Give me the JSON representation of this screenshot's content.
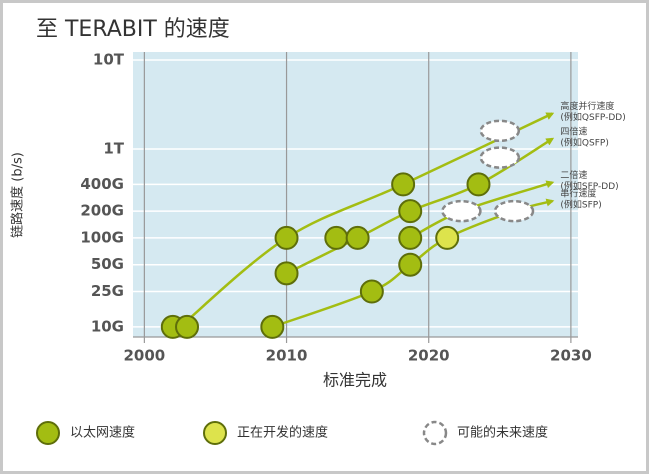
{
  "chart_data": {
    "type": "scatter",
    "title": "至 TERABIT 的速度",
    "x_label": "标准完成",
    "y_label": "链路速度 (b/s)",
    "log_y": true,
    "grid": true,
    "xlim": [
      1999.2,
      2030.5
    ],
    "xticks": [
      2000,
      2010,
      2020,
      2030
    ],
    "ylim": [
      7.7,
      12300
    ],
    "yticks": [
      {
        "value": 10,
        "label": "10G"
      },
      {
        "value": 25,
        "label": "25G"
      },
      {
        "value": 50,
        "label": "50G"
      },
      {
        "value": 100,
        "label": "100G"
      },
      {
        "value": 200,
        "label": "200G"
      },
      {
        "value": 400,
        "label": "400G"
      },
      {
        "value": 1000,
        "label": "1T"
      },
      {
        "value": 10000,
        "label": "10T"
      }
    ],
    "series": [
      {
        "name": "以太网速度",
        "color": "#a3bd12",
        "style": "solid",
        "x": [
          2002,
          2003,
          2009,
          2010,
          2010,
          2013.5,
          2015,
          2016,
          2018.2,
          2018.7,
          2018.7,
          2018.7,
          2023.5
        ],
        "values": [
          10,
          10,
          10,
          100,
          40,
          100,
          100,
          25,
          400,
          200,
          100,
          50,
          400
        ]
      },
      {
        "name": "正在开发的速度",
        "color": "#dde34c",
        "style": "solid",
        "x": [
          2021.3
        ],
        "values": [
          100
        ]
      },
      {
        "name": "可能的未来速度",
        "color": "#888888",
        "style": "dashed",
        "x": [
          2025,
          2025,
          2022.3,
          2026
        ],
        "values": [
          1600,
          800,
          200,
          200
        ]
      }
    ],
    "trends": [
      {
        "label": [
          "高度并行速度",
          "(例如QSFP-DD)"
        ],
        "color": "#a3bd12",
        "x": [
          2002.5,
          2010,
          2018.2,
          2028.7
        ],
        "values": [
          10,
          100,
          400,
          2500
        ]
      },
      {
        "label": [
          "四倍速",
          "(例如QSFP)"
        ],
        "color": "#a3bd12",
        "x": [
          2010,
          2015,
          2018.7,
          2023.5,
          2028.7
        ],
        "values": [
          40,
          100,
          200,
          400,
          1300
        ]
      },
      {
        "label": [
          "二倍速",
          "(例如SFP-DD)"
        ],
        "color": "#a3bd12",
        "x": [
          2018.7,
          2022.3,
          2028.7
        ],
        "values": [
          100,
          200,
          420
        ]
      },
      {
        "label": [
          "串行速度",
          "(例如SFP)"
        ],
        "color": "#a3bd12",
        "x": [
          2009,
          2016,
          2018.7,
          2021.3,
          2026,
          2028.7
        ],
        "values": [
          10,
          25,
          50,
          100,
          200,
          260
        ]
      }
    ]
  }
}
